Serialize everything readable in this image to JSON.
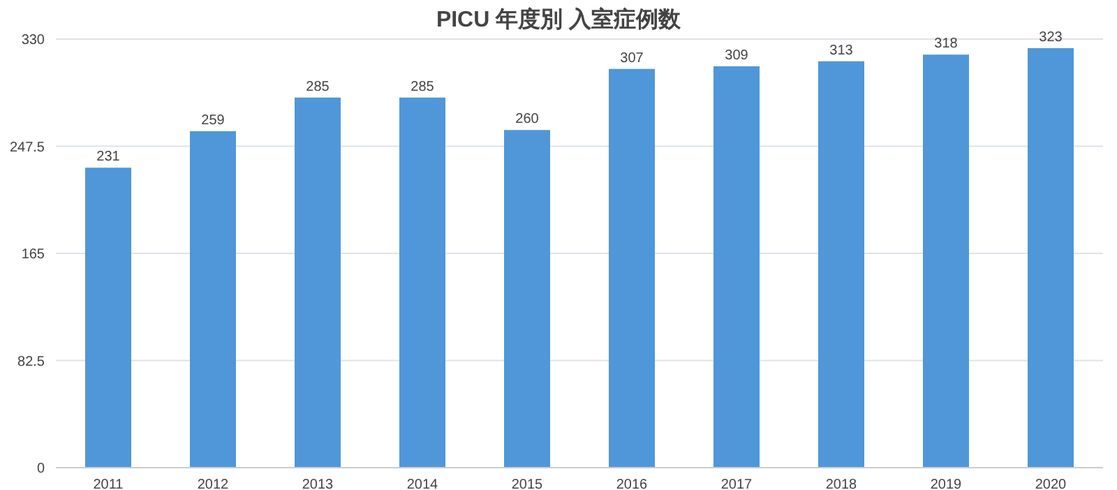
{
  "chart_data": {
    "type": "bar",
    "title": "PICU 年度別 入室症例数",
    "categories": [
      "2011",
      "2012",
      "2013",
      "2014",
      "2015",
      "2016",
      "2017",
      "2018",
      "2019",
      "2020"
    ],
    "values": [
      231,
      259,
      285,
      285,
      260,
      307,
      309,
      313,
      318,
      323
    ],
    "color": "#4f97d8",
    "ylim": [
      0,
      330
    ],
    "yticks": [
      0,
      82.5,
      165,
      247.5,
      330
    ],
    "grid": "y",
    "data_labels": true
  }
}
